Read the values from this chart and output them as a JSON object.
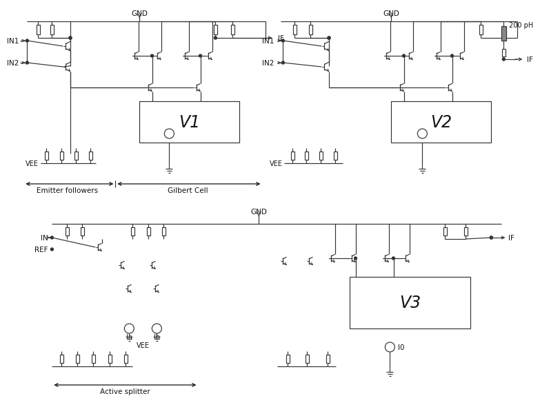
{
  "bg_color": "#ffffff",
  "lc": "#333333",
  "labels": {
    "GND": "GND",
    "IF": "IF",
    "IN1": "IN1",
    "IN2": "IN2",
    "IN": "IN",
    "REF": "REF",
    "VEE": "VEE",
    "I0": "I0",
    "Ia": "Ia",
    "Ib": "Ib",
    "V1": "V1",
    "V2": "V2",
    "V3": "V3",
    "inductor": "200 pH",
    "emitter_followers": "Emitter followers",
    "gilbert_cell": "Gilbert Cell",
    "active_splitter": "Active splitter"
  },
  "fig_w": 7.53,
  "fig_h": 5.72
}
